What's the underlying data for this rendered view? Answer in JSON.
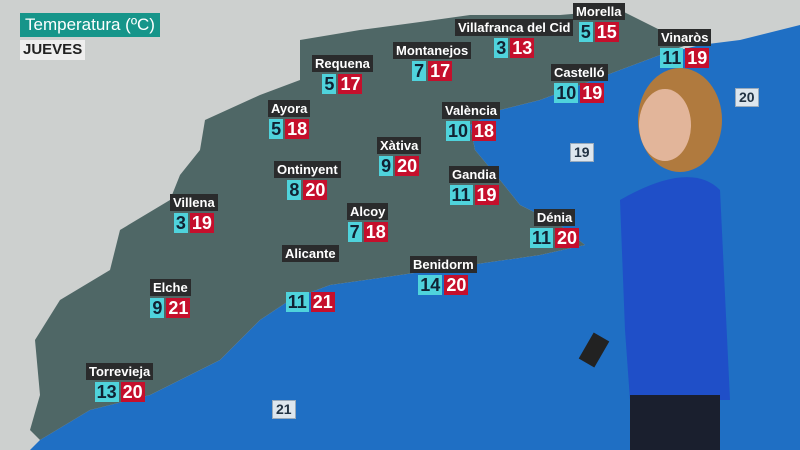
{
  "header": {
    "title": "Temperatura (ºC)",
    "day": "JUEVES"
  },
  "colors": {
    "min": "#4fd3dc",
    "max": "#c50f2c",
    "title_bg": "#16958a",
    "sea": "#1f6fc4"
  },
  "cities": [
    {
      "name": "Morella",
      "min": "5",
      "max": "15"
    },
    {
      "name": "Villafranca del Cid",
      "min": "3",
      "max": "13"
    },
    {
      "name": "Vinaròs",
      "min": "11",
      "max": "19"
    },
    {
      "name": "Montanejos",
      "min": "7",
      "max": "17"
    },
    {
      "name": "Requena",
      "min": "5",
      "max": "17"
    },
    {
      "name": "Castelló",
      "min": "10",
      "max": "19"
    },
    {
      "name": "Ayora",
      "min": "5",
      "max": "18"
    },
    {
      "name": "València",
      "min": "10",
      "max": "18"
    },
    {
      "name": "Xàtiva",
      "min": "9",
      "max": "20"
    },
    {
      "name": "Ontinyent",
      "min": "8",
      "max": "20"
    },
    {
      "name": "Gandia",
      "min": "11",
      "max": "19"
    },
    {
      "name": "Villena",
      "min": "3",
      "max": "19"
    },
    {
      "name": "Alcoy",
      "min": "7",
      "max": "18"
    },
    {
      "name": "Dénia",
      "min": "11",
      "max": "20"
    },
    {
      "name": "Benidorm",
      "min": "14",
      "max": "20"
    },
    {
      "name": "Alicante",
      "min": "11",
      "max": "21"
    },
    {
      "name": "Elche",
      "min": "9",
      "max": "21"
    },
    {
      "name": "Torrevieja",
      "min": "13",
      "max": "20"
    }
  ],
  "sea_temps": [
    "20",
    "19",
    "21"
  ]
}
